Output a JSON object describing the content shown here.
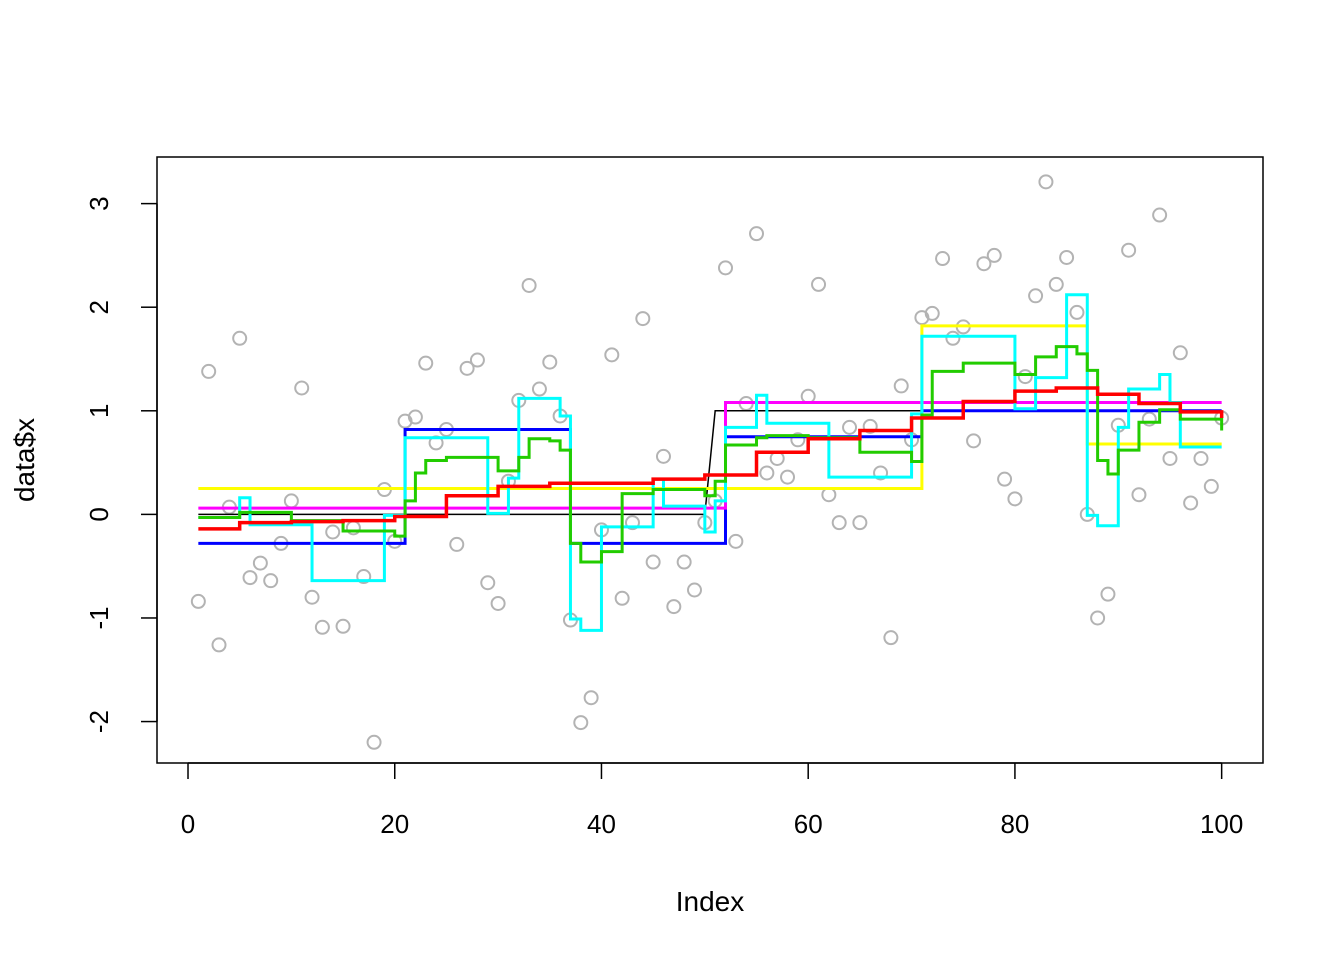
{
  "chart_data": {
    "type": "scatter",
    "title": "",
    "xlabel": "Index",
    "ylabel": "data$x",
    "xlim": [
      -3,
      104
    ],
    "ylim": [
      -2.4,
      3.45
    ],
    "xticks": [
      0,
      20,
      40,
      60,
      80,
      100
    ],
    "yticks": [
      -2,
      -1,
      0,
      1,
      2,
      3
    ],
    "grid": false,
    "legend": "none",
    "points": {
      "color": "#b3b3b3",
      "x": [
        1,
        2,
        3,
        4,
        5,
        6,
        7,
        8,
        9,
        10,
        11,
        12,
        13,
        14,
        15,
        16,
        17,
        18,
        19,
        20,
        21,
        22,
        23,
        24,
        25,
        26,
        27,
        28,
        29,
        30,
        31,
        32,
        33,
        34,
        35,
        36,
        37,
        38,
        39,
        40,
        41,
        42,
        43,
        44,
        45,
        46,
        47,
        48,
        49,
        50,
        51,
        52,
        53,
        54,
        55,
        56,
        57,
        58,
        59,
        60,
        61,
        62,
        63,
        64,
        65,
        66,
        67,
        68,
        69,
        70,
        71,
        72,
        73,
        74,
        75,
        76,
        77,
        78,
        79,
        80,
        81,
        82,
        83,
        84,
        85,
        86,
        87,
        88,
        89,
        90,
        91,
        92,
        93,
        94,
        95,
        96,
        97,
        98,
        99,
        100
      ],
      "y": [
        -0.84,
        1.38,
        -1.26,
        0.07,
        1.7,
        -0.61,
        -0.47,
        -0.64,
        -0.28,
        0.13,
        1.22,
        -0.8,
        -1.09,
        -0.17,
        -1.08,
        -0.13,
        -0.6,
        -2.2,
        0.24,
        -0.26,
        0.9,
        0.94,
        1.46,
        0.69,
        0.82,
        -0.29,
        1.41,
        1.49,
        -0.66,
        -0.86,
        0.32,
        1.1,
        2.21,
        1.21,
        1.47,
        0.95,
        -1.02,
        -2.01,
        -1.77,
        -0.15,
        1.54,
        -0.81,
        -0.08,
        1.89,
        -0.46,
        0.56,
        -0.89,
        -0.46,
        -0.73,
        -0.08,
        0.13,
        2.38,
        -0.26,
        1.07,
        2.71,
        0.4,
        0.54,
        0.36,
        0.72,
        1.14,
        2.22,
        0.19,
        -0.08,
        0.84,
        -0.08,
        0.85,
        0.4,
        -1.19,
        1.24,
        0.72,
        1.9,
        1.94,
        2.47,
        1.7,
        1.81,
        0.71,
        2.42,
        2.5,
        0.34,
        0.15,
        1.33,
        2.11,
        3.21,
        2.22,
        2.48,
        1.95,
        0.0,
        -1.0,
        -0.77,
        0.86,
        2.55,
        0.19,
        0.92,
        2.89,
        0.54,
        1.56,
        0.11,
        0.54,
        0.27,
        0.93
      ]
    },
    "series": [
      {
        "color": "#000000",
        "width": 1.5,
        "style": "line",
        "x": [
          1,
          50,
          51,
          100
        ],
        "y": [
          0,
          0,
          1,
          1
        ]
      },
      {
        "color": "#0000ff",
        "width": 3,
        "style": "step",
        "x": [
          1,
          21,
          37,
          52,
          71,
          100
        ],
        "y": [
          -0.28,
          0.82,
          -0.28,
          0.75,
          1.0,
          1.0
        ]
      },
      {
        "color": "#ff00ff",
        "width": 3,
        "style": "step",
        "x": [
          1,
          52,
          100
        ],
        "y": [
          0.06,
          1.08,
          1.08
        ]
      },
      {
        "color": "#ffff00",
        "width": 3,
        "style": "step",
        "x": [
          1,
          71,
          87,
          100
        ],
        "y": [
          0.25,
          1.82,
          0.68,
          0.68
        ]
      },
      {
        "color": "#00ffff",
        "width": 3,
        "style": "step",
        "x": [
          1,
          5,
          6,
          12,
          19,
          21,
          23,
          29,
          31,
          32,
          36,
          37,
          38,
          40,
          45,
          46,
          50,
          51,
          52,
          55,
          56,
          62,
          70,
          71,
          80,
          82,
          85,
          87,
          88,
          90,
          91,
          94,
          95,
          96,
          97,
          99,
          100
        ],
        "y": [
          -0.03,
          0.16,
          -0.1,
          -0.64,
          -0.01,
          0.74,
          0.74,
          0.01,
          0.35,
          1.12,
          0.95,
          -1.01,
          -1.12,
          -0.12,
          0.34,
          0.08,
          -0.17,
          0.13,
          0.84,
          1.15,
          0.88,
          0.36,
          0.97,
          1.72,
          1.02,
          1.32,
          2.12,
          -0.01,
          -0.11,
          0.84,
          1.21,
          1.35,
          1.08,
          0.65,
          0.65,
          0.65,
          0.65
        ]
      },
      {
        "color": "#22cc00",
        "width": 3,
        "style": "step",
        "x": [
          1,
          5,
          10,
          15,
          20,
          21,
          22,
          23,
          25,
          30,
          32,
          33,
          35,
          36,
          37,
          38,
          40,
          42,
          45,
          50,
          51,
          52,
          55,
          56,
          60,
          65,
          70,
          71,
          72,
          75,
          80,
          82,
          84,
          86,
          87,
          88,
          89,
          90,
          92,
          94,
          96,
          100
        ],
        "y": [
          -0.03,
          0.02,
          -0.06,
          -0.16,
          -0.21,
          0.13,
          0.4,
          0.52,
          0.55,
          0.42,
          0.55,
          0.73,
          0.71,
          0.62,
          -0.28,
          -0.46,
          -0.36,
          0.2,
          0.24,
          0.18,
          0.32,
          0.67,
          0.74,
          0.76,
          0.74,
          0.6,
          0.51,
          0.96,
          1.38,
          1.46,
          1.35,
          1.52,
          1.62,
          1.55,
          1.39,
          0.52,
          0.39,
          0.62,
          0.89,
          1.01,
          0.92,
          0.81
        ]
      },
      {
        "color": "#ff0000",
        "width": 3.5,
        "style": "step",
        "x": [
          1,
          5,
          10,
          15,
          20,
          25,
          30,
          35,
          40,
          45,
          50,
          55,
          60,
          65,
          70,
          75,
          80,
          84,
          88,
          92,
          96,
          100
        ],
        "y": [
          -0.14,
          -0.08,
          -0.07,
          -0.06,
          -0.02,
          0.18,
          0.27,
          0.3,
          0.3,
          0.34,
          0.38,
          0.6,
          0.73,
          0.81,
          0.93,
          1.09,
          1.19,
          1.22,
          1.16,
          1.07,
          0.99,
          0.93
        ]
      }
    ]
  }
}
